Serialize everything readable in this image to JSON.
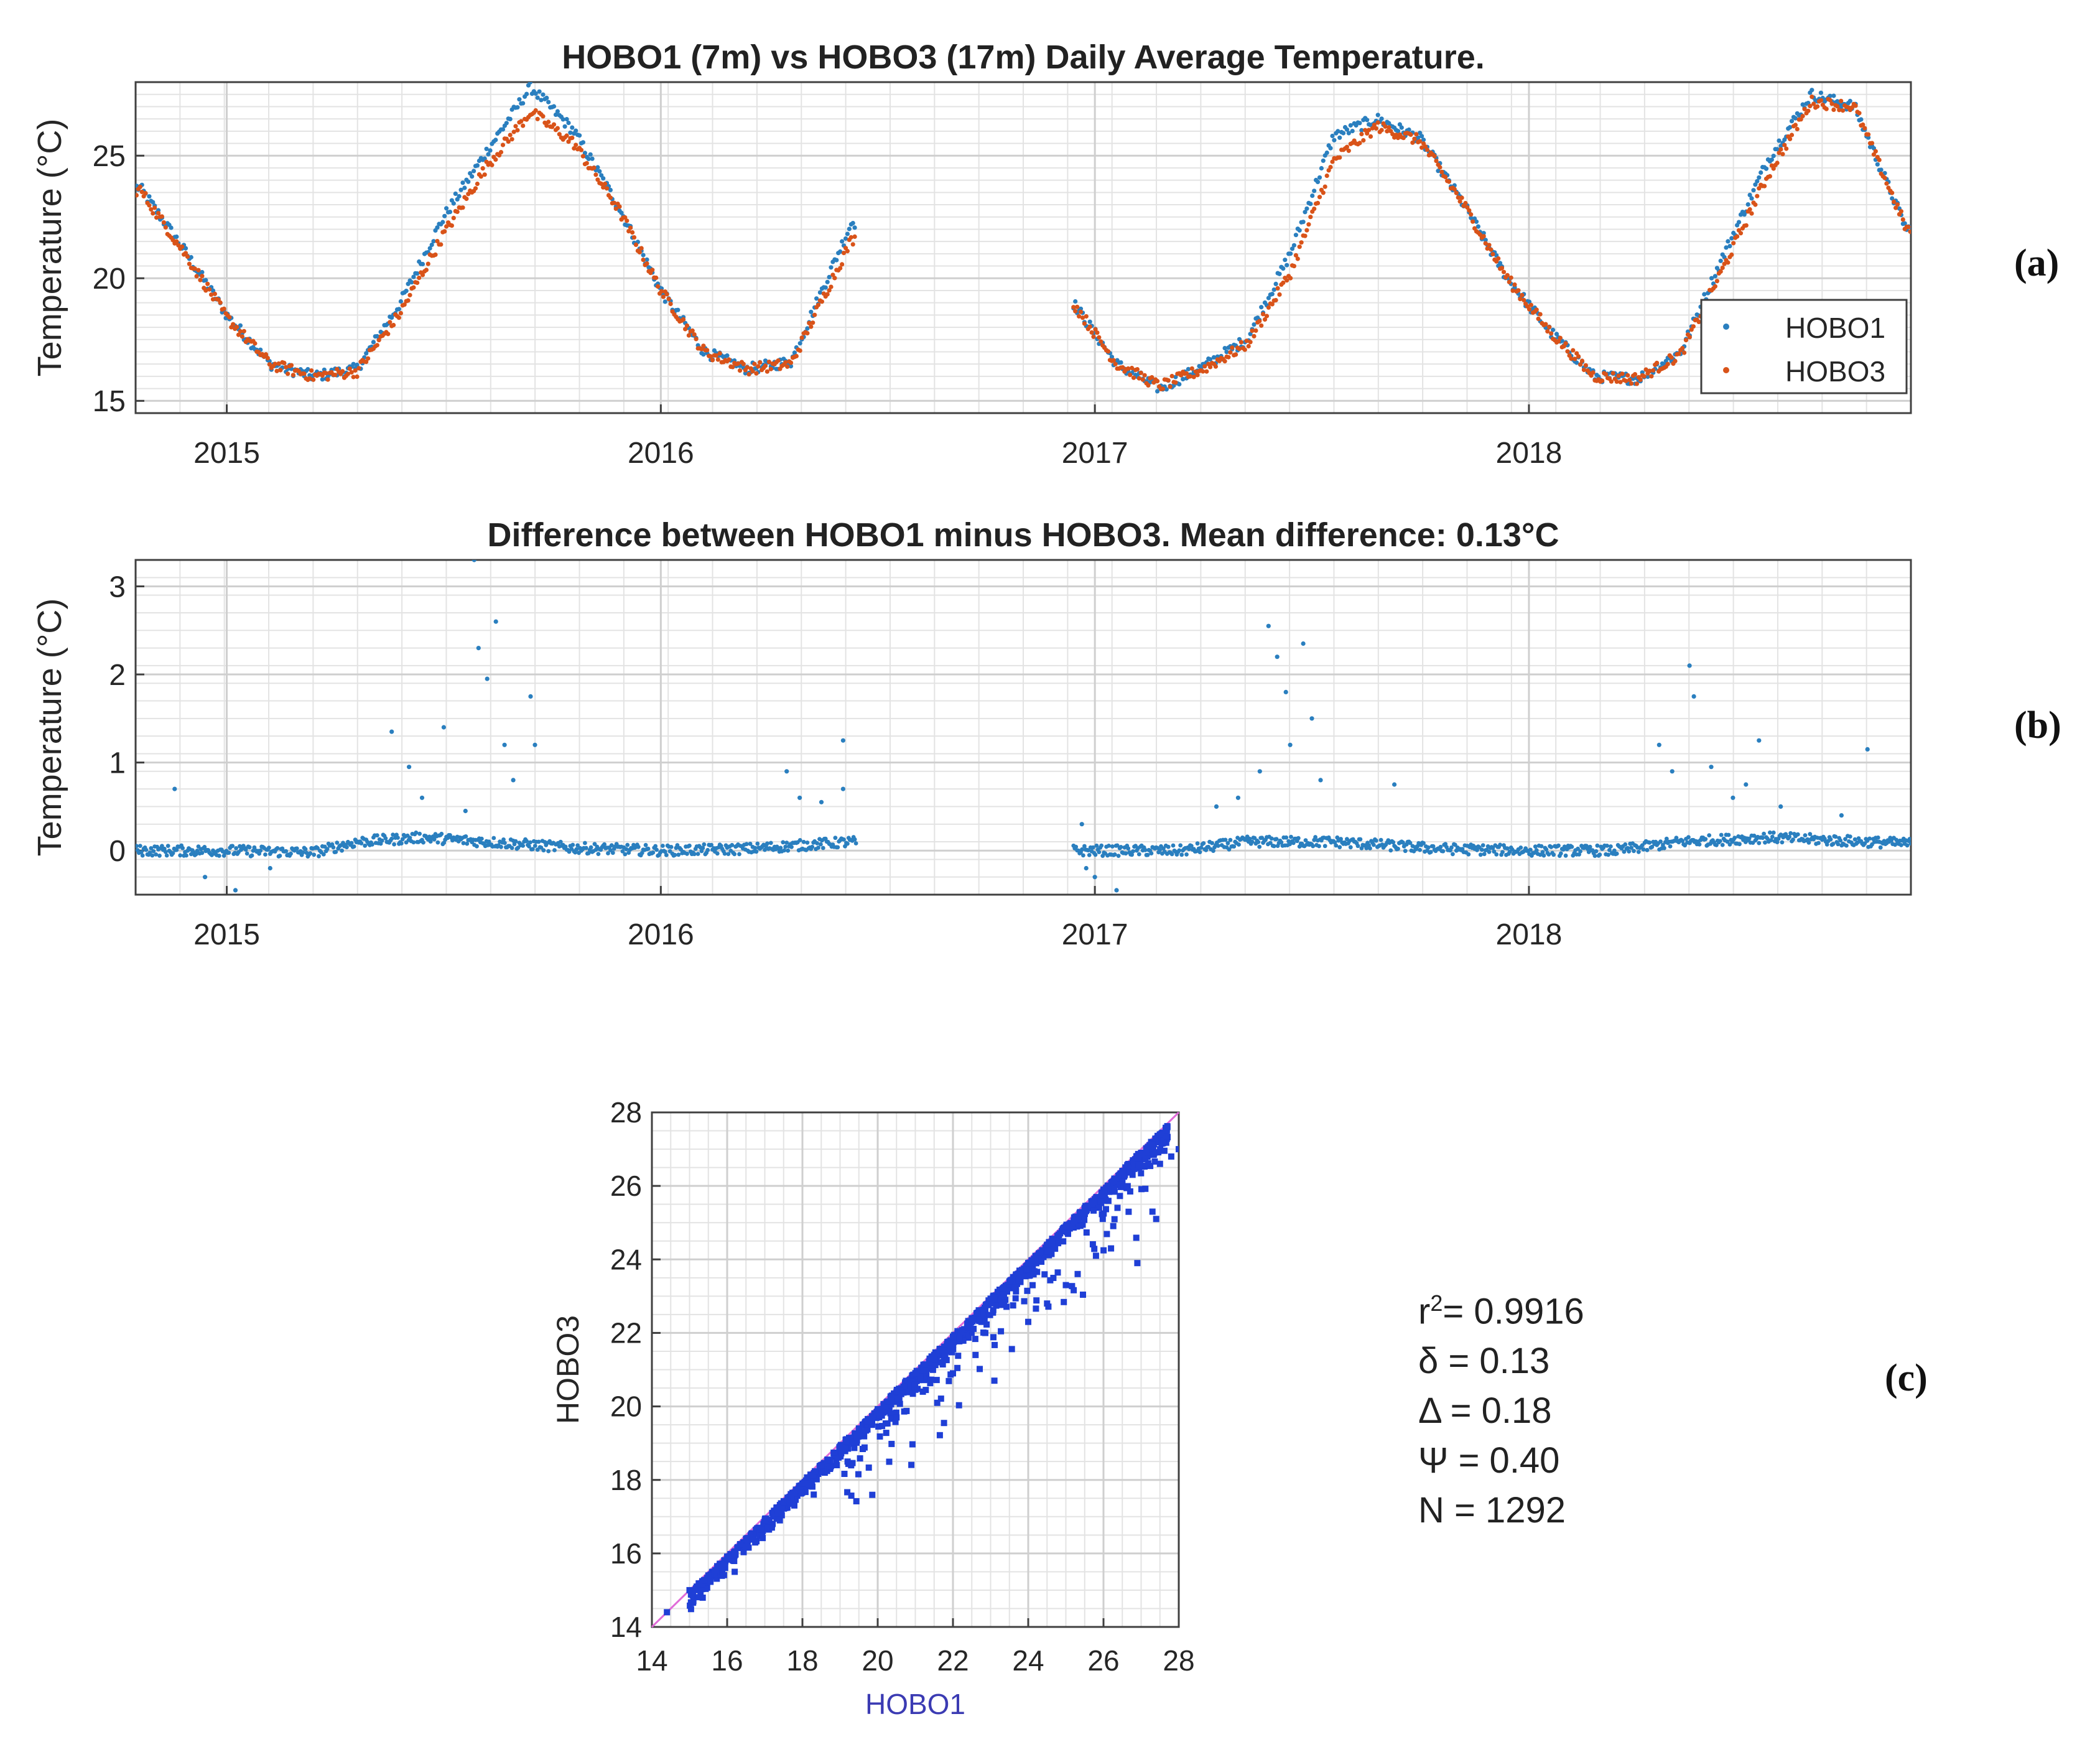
{
  "chart_data": [
    {
      "panel": "(a)",
      "type": "scatter",
      "title": "HOBO1 (7m) vs HOBO3 (17m) Daily Average Temperature.",
      "xlabel": "",
      "ylabel": "Temperature (°C)",
      "xlim": [
        2014.79,
        2018.88
      ],
      "ylim": [
        14.5,
        28
      ],
      "xticks": [
        2015,
        2016,
        2017,
        2018
      ],
      "xtick_labels": [
        "2015",
        "2016",
        "2017",
        "2018"
      ],
      "yticks": [
        15,
        20,
        25
      ],
      "ytick_labels": [
        "15",
        "20",
        "25"
      ],
      "grid": true,
      "legend_position": "bottom-right",
      "gap": [
        2016.45,
        2016.95
      ],
      "series": [
        {
          "name": "HOBO1",
          "color": "#2a7fbf",
          "x": [
            2014.8,
            2014.9,
            2015.0,
            2015.1,
            2015.2,
            2015.3,
            2015.4,
            2015.5,
            2015.6,
            2015.7,
            2015.8,
            2015.9,
            2016.0,
            2016.1,
            2016.2,
            2016.3,
            2016.44,
            2016.95,
            2017.05,
            2017.15,
            2017.25,
            2017.35,
            2017.45,
            2017.55,
            2017.65,
            2017.75,
            2017.85,
            2017.95,
            2018.05,
            2018.15,
            2018.25,
            2018.35,
            2018.45,
            2018.55,
            2018.65,
            2018.75,
            2018.87
          ],
          "y": [
            23.7,
            21.2,
            18.5,
            16.5,
            16.0,
            16.3,
            19.0,
            22.5,
            25.2,
            27.8,
            26.0,
            23.0,
            19.5,
            17.0,
            16.3,
            16.6,
            22.3,
            19.0,
            16.5,
            15.5,
            16.4,
            17.5,
            21.0,
            25.8,
            26.5,
            25.7,
            23.0,
            20.0,
            17.8,
            16.0,
            15.9,
            17.0,
            21.0,
            24.8,
            27.5,
            27.0,
            22.0
          ]
        },
        {
          "name": "HOBO3",
          "color": "#d95319",
          "x": [
            2014.8,
            2014.9,
            2015.0,
            2015.1,
            2015.2,
            2015.3,
            2015.4,
            2015.5,
            2015.6,
            2015.7,
            2015.8,
            2015.9,
            2016.0,
            2016.1,
            2016.2,
            2016.3,
            2016.44,
            2016.95,
            2017.05,
            2017.15,
            2017.25,
            2017.35,
            2017.45,
            2017.55,
            2017.65,
            2017.75,
            2017.85,
            2017.95,
            2018.05,
            2018.15,
            2018.25,
            2018.35,
            2018.45,
            2018.55,
            2018.65,
            2018.75,
            2018.87
          ],
          "y": [
            23.6,
            21.1,
            18.4,
            16.5,
            16.0,
            16.2,
            18.6,
            21.8,
            24.6,
            26.8,
            25.5,
            22.9,
            19.5,
            17.0,
            16.3,
            16.5,
            21.6,
            19.0,
            16.5,
            15.6,
            16.3,
            17.3,
            20.2,
            24.8,
            26.2,
            25.6,
            23.0,
            20.0,
            17.8,
            16.0,
            15.9,
            16.9,
            20.5,
            24.2,
            27.2,
            27.0,
            22.0
          ]
        }
      ]
    },
    {
      "panel": "(b)",
      "type": "scatter",
      "title": "Difference between HOBO1 minus HOBO3. Mean difference: 0.13°C",
      "xlabel": "",
      "ylabel": "Temperature (°C)",
      "xlim": [
        2014.79,
        2018.88
      ],
      "ylim": [
        -0.5,
        3.3
      ],
      "xticks": [
        2015,
        2016,
        2017,
        2018
      ],
      "xtick_labels": [
        "2015",
        "2016",
        "2017",
        "2018"
      ],
      "yticks": [
        0,
        1,
        2,
        3
      ],
      "ytick_labels": [
        "0",
        "1",
        "2",
        "3"
      ],
      "grid": true,
      "series": [
        {
          "name": "HOBO1 - HOBO3",
          "color": "#2a7fbf",
          "baseline": [
            [
              2014.8,
              0.0
            ],
            [
              2015.0,
              0.0
            ],
            [
              2015.2,
              -0.02
            ],
            [
              2015.3,
              0.1
            ],
            [
              2015.45,
              0.15
            ],
            [
              2015.6,
              0.1
            ],
            [
              2015.8,
              0.03
            ],
            [
              2016.0,
              0.0
            ],
            [
              2016.2,
              0.02
            ],
            [
              2016.44,
              0.1
            ],
            [
              2016.95,
              0.0
            ],
            [
              2017.2,
              0.0
            ],
            [
              2017.35,
              0.1
            ],
            [
              2017.55,
              0.1
            ],
            [
              2017.8,
              0.02
            ],
            [
              2018.0,
              0.0
            ],
            [
              2018.2,
              0.0
            ],
            [
              2018.35,
              0.1
            ],
            [
              2018.55,
              0.15
            ],
            [
              2018.87,
              0.08
            ]
          ],
          "outliers": [
            [
              2014.88,
              0.7
            ],
            [
              2014.95,
              -0.3
            ],
            [
              2015.02,
              -0.45
            ],
            [
              2015.1,
              -0.2
            ],
            [
              2015.38,
              1.35
            ],
            [
              2015.42,
              0.95
            ],
            [
              2015.45,
              0.6
            ],
            [
              2015.5,
              1.4
            ],
            [
              2015.55,
              0.45
            ],
            [
              2015.57,
              3.3
            ],
            [
              2015.58,
              2.3
            ],
            [
              2015.6,
              1.95
            ],
            [
              2015.62,
              2.6
            ],
            [
              2015.64,
              1.2
            ],
            [
              2015.66,
              0.8
            ],
            [
              2015.7,
              1.75
            ],
            [
              2015.71,
              1.2
            ],
            [
              2016.29,
              0.9
            ],
            [
              2016.32,
              0.6
            ],
            [
              2016.37,
              0.55
            ],
            [
              2016.42,
              1.25
            ],
            [
              2016.42,
              0.7
            ],
            [
              2016.97,
              0.3
            ],
            [
              2016.98,
              -0.2
            ],
            [
              2017.0,
              -0.3
            ],
            [
              2017.05,
              -0.45
            ],
            [
              2017.28,
              0.5
            ],
            [
              2017.33,
              0.6
            ],
            [
              2017.38,
              0.9
            ],
            [
              2017.4,
              2.55
            ],
            [
              2017.42,
              2.2
            ],
            [
              2017.44,
              1.8
            ],
            [
              2017.45,
              1.2
            ],
            [
              2017.48,
              2.35
            ],
            [
              2017.5,
              1.5
            ],
            [
              2017.52,
              0.8
            ],
            [
              2017.69,
              0.75
            ],
            [
              2018.3,
              1.2
            ],
            [
              2018.33,
              0.9
            ],
            [
              2018.37,
              2.1
            ],
            [
              2018.38,
              1.75
            ],
            [
              2018.42,
              0.95
            ],
            [
              2018.47,
              0.6
            ],
            [
              2018.5,
              0.75
            ],
            [
              2018.53,
              1.25
            ],
            [
              2018.58,
              0.5
            ],
            [
              2018.72,
              0.4
            ],
            [
              2018.78,
              1.15
            ]
          ]
        }
      ]
    },
    {
      "panel": "(c)",
      "type": "scatter",
      "title": "",
      "xlabel": "HOBO1",
      "ylabel": "HOBO3",
      "xlim": [
        14,
        28
      ],
      "ylim": [
        14,
        28
      ],
      "xticks": [
        14,
        16,
        18,
        20,
        22,
        24,
        26,
        28
      ],
      "xtick_labels": [
        "14",
        "16",
        "18",
        "20",
        "22",
        "24",
        "26",
        "28"
      ],
      "yticks": [
        14,
        16,
        18,
        20,
        22,
        24,
        26,
        28
      ],
      "ytick_labels": [
        "14",
        "16",
        "18",
        "20",
        "22",
        "24",
        "26",
        "28"
      ],
      "grid": true,
      "identity_line_color": "#e06bd8",
      "series": [
        {
          "name": "HOBO3 vs HOBO1",
          "color": "#1f3fd6",
          "x": [
            14.4,
            15.0,
            15.5,
            16.0,
            16.5,
            17.0,
            17.5,
            18.0,
            18.5,
            19.0,
            19.5,
            20.0,
            20.5,
            21.0,
            21.5,
            22.0,
            22.5,
            23.0,
            23.5,
            24.0,
            24.5,
            25.0,
            25.5,
            26.0,
            26.5,
            27.0,
            27.5,
            27.7,
            21.2,
            22.0,
            22.6,
            23.1,
            24.0,
            24.5,
            25.0,
            25.8,
            26.2,
            26.9,
            27.3,
            27.4,
            27.5,
            27.8,
            28.0,
            20.5,
            19.2,
            18.3,
            17.4,
            16.2
          ],
          "y": [
            14.4,
            15.0,
            15.4,
            15.9,
            16.4,
            16.9,
            17.4,
            17.9,
            18.4,
            18.9,
            19.4,
            19.9,
            20.4,
            20.9,
            21.4,
            21.9,
            22.4,
            22.9,
            23.4,
            23.9,
            24.4,
            24.9,
            25.4,
            25.9,
            26.4,
            26.9,
            27.4,
            27.6,
            20.4,
            20.9,
            21.4,
            20.7,
            22.3,
            22.8,
            23.3,
            24.1,
            24.3,
            23.9,
            25.3,
            25.1,
            26.6,
            26.8,
            27.0,
            19.7,
            18.5,
            17.6,
            16.9,
            15.5
          ]
        }
      ]
    }
  ],
  "panel_labels": {
    "a": "(a)",
    "b": "(b)",
    "c": "(c)"
  },
  "stats": {
    "r2_prefix": "r",
    "r2_sup": "2",
    "r2_value": "= 0.9916",
    "delta_small": "δ = 0.13",
    "delta_big": "Δ = 0.18",
    "psi": "Ψ = 0.40",
    "n": "N = 1292"
  },
  "colors": {
    "hobo1": "#2a7fbf",
    "hobo3": "#d95319",
    "scatter": "#1f3fd6",
    "identity": "#e06bd8",
    "xlabel_c": "#3b3bb3"
  }
}
